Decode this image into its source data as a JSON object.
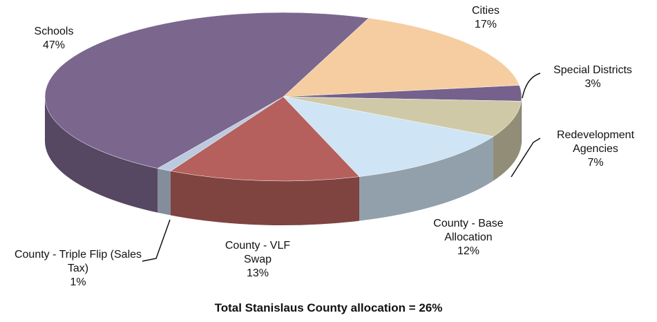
{
  "chart_data": {
    "type": "pie3d",
    "title": "Total Stanislaus County allocation = 26%",
    "categories": [
      "Cities",
      "Special Districts",
      "Redevelopment Agencies",
      "County - Base Allocation",
      "County - VLF Swap",
      "County - Triple Flip (Sales Tax)",
      "Schools"
    ],
    "values": [
      17,
      3,
      7,
      12,
      13,
      1,
      47
    ],
    "value_labels": [
      "17%",
      "3%",
      "7%",
      "12%",
      "13%",
      "1%",
      "47%"
    ],
    "colors": [
      "#f5cda0",
      "#75618c",
      "#d0c9a8",
      "#cfe4f4",
      "#b5605c",
      "#bccadf",
      "#7b668e"
    ]
  }
}
